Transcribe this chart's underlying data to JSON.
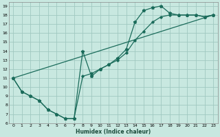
{
  "xlabel": "Humidex (Indice chaleur)",
  "bg_color": "#c8e8e0",
  "grid_color": "#a0c8c0",
  "line_color": "#1a6b5a",
  "xlim": [
    -0.5,
    23.5
  ],
  "ylim": [
    6,
    19.4
  ],
  "xticks": [
    0,
    1,
    2,
    3,
    4,
    5,
    6,
    7,
    8,
    9,
    10,
    11,
    12,
    13,
    14,
    15,
    16,
    17,
    18,
    19,
    20,
    21,
    22,
    23
  ],
  "yticks": [
    6,
    7,
    8,
    9,
    10,
    11,
    12,
    13,
    14,
    15,
    16,
    17,
    18,
    19
  ],
  "line1_x": [
    0,
    1,
    2,
    3,
    4,
    5,
    6,
    7,
    8,
    9,
    10,
    11,
    12,
    13,
    14,
    15,
    16,
    17,
    18,
    19,
    20,
    21,
    22,
    23
  ],
  "line1_y": [
    11,
    9.5,
    9,
    8.5,
    7.5,
    7,
    6.5,
    6.5,
    14,
    11.2,
    12.0,
    12.5,
    13.2,
    14.2,
    17.2,
    18.5,
    18.8,
    19.0,
    18.2,
    18.0,
    18.0,
    18.0,
    17.8,
    18.0
  ],
  "line2_x": [
    0,
    1,
    2,
    3,
    4,
    5,
    6,
    7,
    8,
    9,
    10,
    11,
    12,
    13,
    14,
    15,
    16,
    17,
    18,
    19,
    20,
    21,
    22,
    23
  ],
  "line2_y": [
    11,
    9.5,
    9,
    8.5,
    7.5,
    7,
    6.5,
    6.5,
    11.2,
    11.5,
    12.0,
    12.5,
    13.0,
    13.8,
    15.2,
    16.2,
    17.2,
    17.8,
    18.0,
    18.0,
    18.0,
    18.0,
    17.8,
    18.0
  ],
  "line3_x": [
    0,
    23
  ],
  "line3_y": [
    11,
    18
  ]
}
